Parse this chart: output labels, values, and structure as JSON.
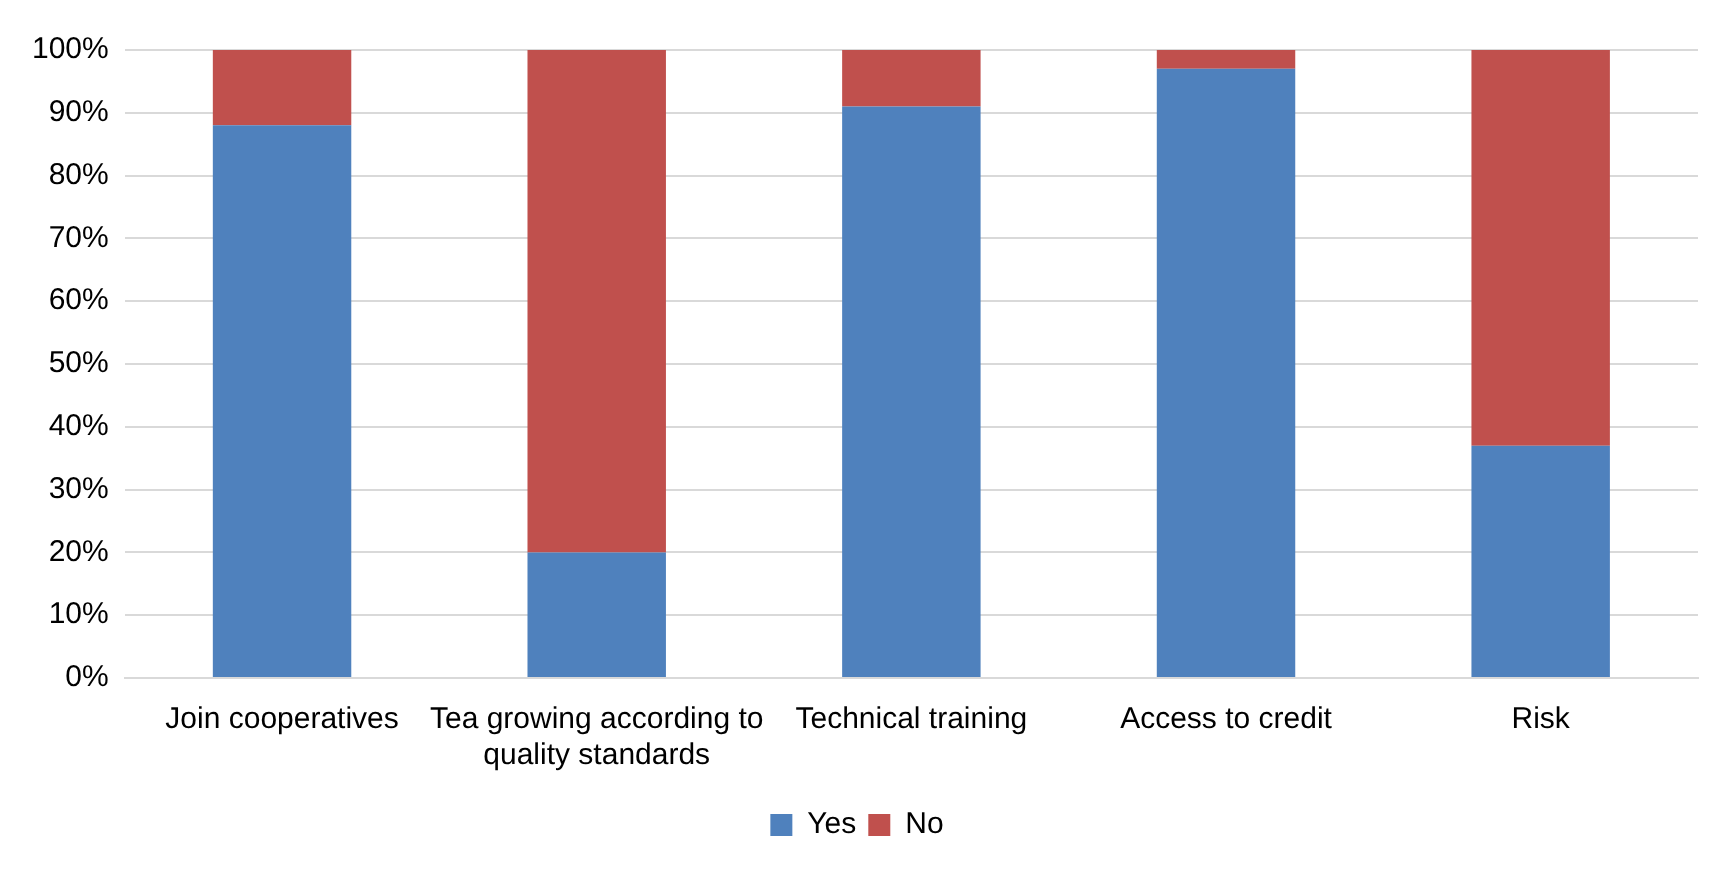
{
  "chart_data": {
    "type": "bar",
    "stacked": true,
    "categories": [
      "Join cooperatives",
      "Tea growing according to quality standards",
      "Technical training",
      "Access to credit",
      "Risk"
    ],
    "series": [
      {
        "name": "Yes",
        "color": "#4f81bd",
        "values": [
          88,
          20,
          91,
          97,
          37
        ]
      },
      {
        "name": "No",
        "color": "#c0504d",
        "values": [
          12,
          80,
          9,
          3,
          63
        ]
      }
    ],
    "ylim": [
      0,
      100
    ],
    "yticks": [
      {
        "value": 0,
        "label": "0%"
      },
      {
        "value": 10,
        "label": "10%"
      },
      {
        "value": 20,
        "label": "20%"
      },
      {
        "value": 30,
        "label": "30%"
      },
      {
        "value": 40,
        "label": "40%"
      },
      {
        "value": 50,
        "label": "50%"
      },
      {
        "value": 60,
        "label": "60%"
      },
      {
        "value": 70,
        "label": "70%"
      },
      {
        "value": 80,
        "label": "80%"
      },
      {
        "value": 90,
        "label": "90%"
      },
      {
        "value": 100,
        "label": "100%"
      }
    ],
    "grid": "y",
    "legend": "bottom"
  }
}
